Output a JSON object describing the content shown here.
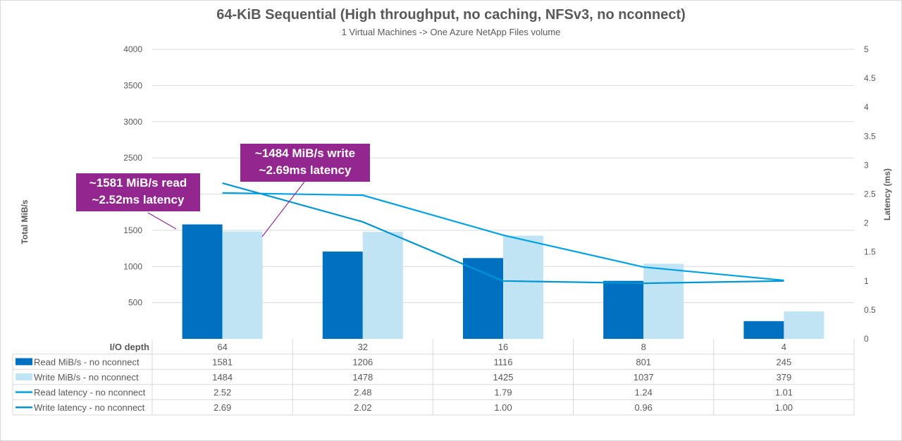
{
  "chart_data": {
    "type": "bar",
    "title": "64-KiB Sequential (High throughput, no caching, NFSv3, no nconnect)",
    "subtitle": "1 Virtual Machines -> One Azure NetApp Files volume",
    "ylabel": "Total MiB/s",
    "y2label": "Latency (ms)",
    "ylim": [
      0,
      4000
    ],
    "y2lim": [
      0,
      5
    ],
    "yticks": [
      "500",
      "1000",
      "1500",
      "2000",
      "2500",
      "3000",
      "3500",
      "4000"
    ],
    "y2ticks": [
      "0",
      "0.5",
      "1",
      "1.5",
      "2",
      "2.5",
      "3",
      "3.5",
      "4",
      "4.5",
      "5"
    ],
    "category_header": "I/O depth",
    "categories": [
      "64",
      "32",
      "16",
      "8",
      "4"
    ],
    "series": [
      {
        "name": "Read MiB/s - no nconnect",
        "kind": "bar",
        "axis": "left",
        "color": "#0070c0",
        "values": [
          1581,
          1206,
          1116,
          801,
          245
        ],
        "labels": [
          "1581",
          "1206",
          "1116",
          "801",
          "245"
        ]
      },
      {
        "name": "Write MiB/s - no nconnect",
        "kind": "bar",
        "axis": "left",
        "color": "#c1e4f5",
        "values": [
          1484,
          1478,
          1425,
          1037,
          379
        ],
        "labels": [
          "1484",
          "1478",
          "1425",
          "1037",
          "379"
        ]
      },
      {
        "name": "Read latency - no nconnect",
        "kind": "line",
        "axis": "right",
        "color": "#00a2e8",
        "values": [
          2.52,
          2.48,
          1.79,
          1.24,
          1.01
        ],
        "labels": [
          "2.52",
          "2.48",
          "1.79",
          "1.24",
          "1.01"
        ]
      },
      {
        "name": "Write latency - no nconnect",
        "kind": "line",
        "axis": "right",
        "color": "#0096d6",
        "values": [
          2.69,
          2.02,
          1.0,
          0.96,
          1.0
        ],
        "labels": [
          "2.69",
          "2.02",
          "1.00",
          "0.96",
          "1.00"
        ]
      }
    ],
    "annotations": [
      {
        "lines": [
          "~1581 MiB/s read",
          "~2.52ms latency"
        ]
      },
      {
        "lines": [
          "~1484 MiB/s write",
          "~2.69ms latency"
        ]
      }
    ],
    "colors": {
      "callout": "#93278f",
      "grid": "#d9d9d9",
      "text": "#595959"
    },
    "grid": true,
    "legend": "data-table"
  }
}
